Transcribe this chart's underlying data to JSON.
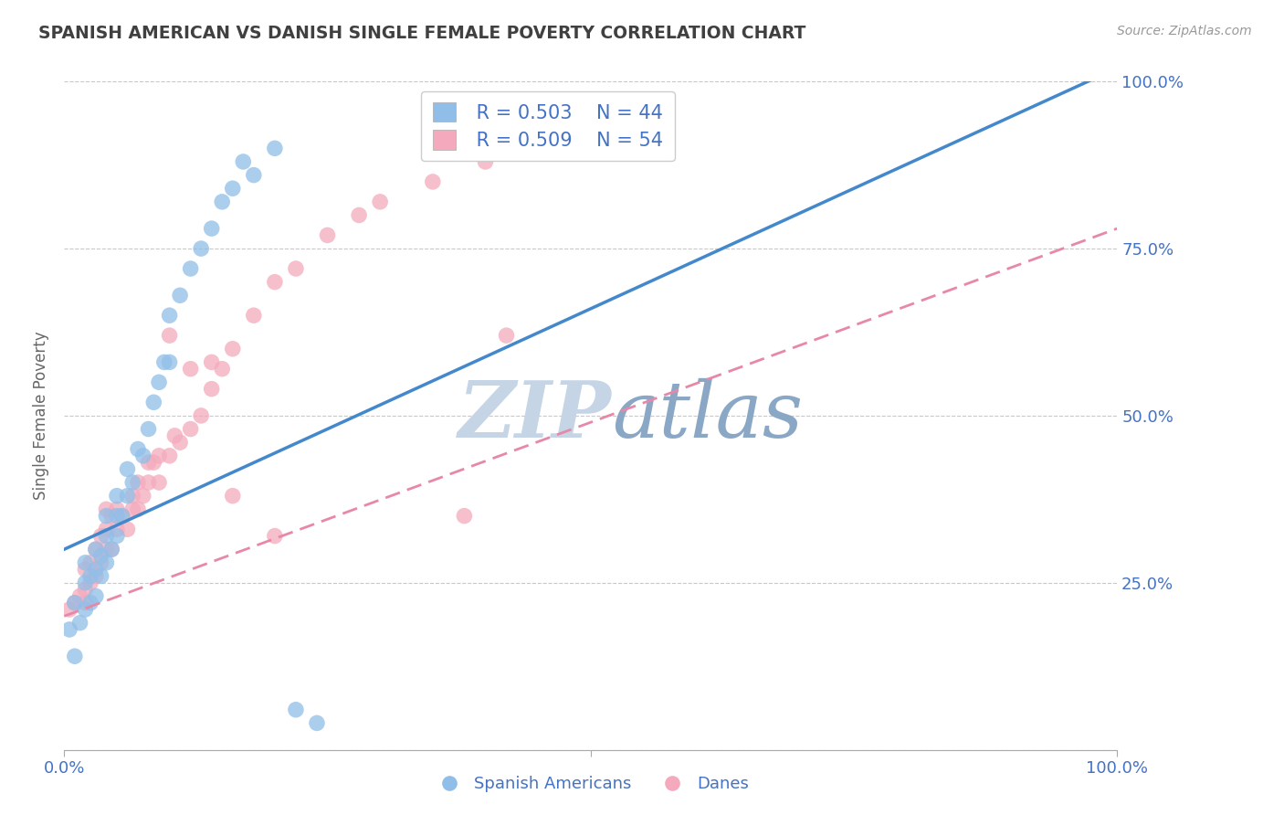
{
  "title": "SPANISH AMERICAN VS DANISH SINGLE FEMALE POVERTY CORRELATION CHART",
  "source": "Source: ZipAtlas.com",
  "ylabel": "Single Female Poverty",
  "xlim": [
    0,
    1
  ],
  "ylim": [
    0,
    1
  ],
  "yticks": [
    0.0,
    0.25,
    0.5,
    0.75,
    1.0
  ],
  "ytick_labels": [
    "",
    "25.0%",
    "50.0%",
    "75.0%",
    "100.0%"
  ],
  "xtick_positions": [
    0.0,
    0.5,
    1.0
  ],
  "xtick_labels": [
    "0.0%",
    "",
    "100.0%"
  ],
  "legend_r_blue": "R = 0.503",
  "legend_n_blue": "N = 44",
  "legend_r_pink": "R = 0.509",
  "legend_n_pink": "N = 54",
  "blue_color": "#91BEE8",
  "pink_color": "#F4AABC",
  "blue_line_color": "#4488CC",
  "pink_line_color": "#E888A8",
  "axis_label_color": "#4472C4",
  "title_color": "#404040",
  "watermark_zip_color": "#C5D5E5",
  "watermark_atlas_color": "#8AA8C5",
  "background_color": "#FFFFFF",
  "grid_color": "#C8C8C8",
  "blue_scatter_x": [
    0.005,
    0.01,
    0.01,
    0.015,
    0.02,
    0.02,
    0.02,
    0.025,
    0.025,
    0.03,
    0.03,
    0.03,
    0.035,
    0.035,
    0.04,
    0.04,
    0.04,
    0.045,
    0.05,
    0.05,
    0.05,
    0.055,
    0.06,
    0.06,
    0.065,
    0.07,
    0.075,
    0.08,
    0.085,
    0.09,
    0.095,
    0.1,
    0.1,
    0.11,
    0.12,
    0.13,
    0.14,
    0.15,
    0.16,
    0.17,
    0.18,
    0.2,
    0.22,
    0.24
  ],
  "blue_scatter_y": [
    0.18,
    0.14,
    0.22,
    0.19,
    0.21,
    0.25,
    0.28,
    0.22,
    0.26,
    0.23,
    0.27,
    0.3,
    0.26,
    0.29,
    0.28,
    0.32,
    0.35,
    0.3,
    0.32,
    0.35,
    0.38,
    0.35,
    0.38,
    0.42,
    0.4,
    0.45,
    0.44,
    0.48,
    0.52,
    0.55,
    0.58,
    0.58,
    0.65,
    0.68,
    0.72,
    0.75,
    0.78,
    0.82,
    0.84,
    0.88,
    0.86,
    0.9,
    0.06,
    0.04
  ],
  "pink_scatter_x": [
    0.005,
    0.01,
    0.015,
    0.02,
    0.02,
    0.02,
    0.025,
    0.025,
    0.03,
    0.03,
    0.035,
    0.035,
    0.04,
    0.04,
    0.04,
    0.045,
    0.045,
    0.05,
    0.05,
    0.055,
    0.06,
    0.065,
    0.065,
    0.07,
    0.07,
    0.075,
    0.08,
    0.08,
    0.085,
    0.09,
    0.09,
    0.1,
    0.105,
    0.11,
    0.12,
    0.13,
    0.14,
    0.15,
    0.16,
    0.18,
    0.2,
    0.22,
    0.25,
    0.28,
    0.3,
    0.35,
    0.4,
    0.42,
    0.1,
    0.12,
    0.14,
    0.16,
    0.2,
    0.38
  ],
  "pink_scatter_y": [
    0.21,
    0.22,
    0.23,
    0.22,
    0.24,
    0.27,
    0.25,
    0.28,
    0.26,
    0.3,
    0.28,
    0.32,
    0.3,
    0.33,
    0.36,
    0.3,
    0.35,
    0.33,
    0.36,
    0.35,
    0.33,
    0.36,
    0.38,
    0.36,
    0.4,
    0.38,
    0.4,
    0.43,
    0.43,
    0.4,
    0.44,
    0.44,
    0.47,
    0.46,
    0.48,
    0.5,
    0.54,
    0.57,
    0.6,
    0.65,
    0.7,
    0.72,
    0.77,
    0.8,
    0.82,
    0.85,
    0.88,
    0.62,
    0.62,
    0.57,
    0.58,
    0.38,
    0.32,
    0.35
  ]
}
